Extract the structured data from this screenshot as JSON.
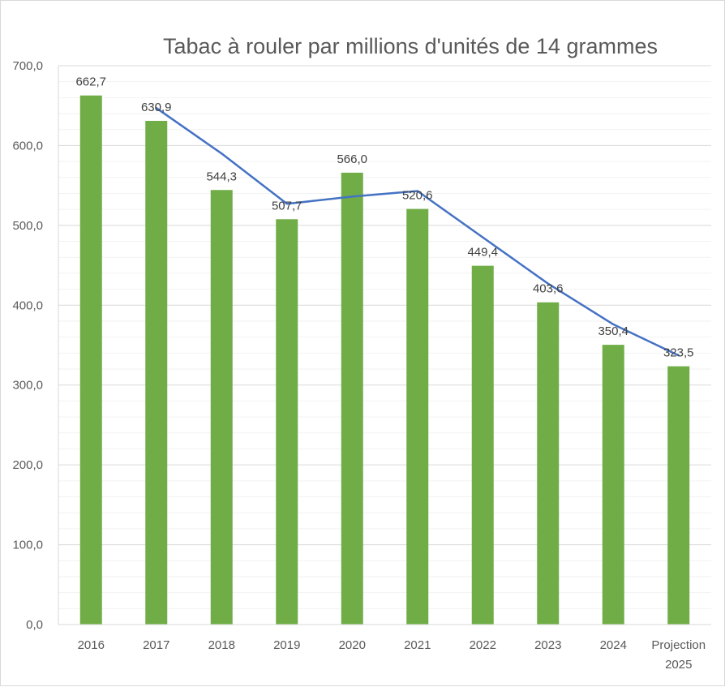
{
  "chart_data": {
    "type": "bar",
    "title": "Tabac à rouler par millions d'unités de 14 grammes",
    "categories": [
      [
        "2016"
      ],
      [
        "2017"
      ],
      [
        "2018"
      ],
      [
        "2019"
      ],
      [
        "2020"
      ],
      [
        "2021"
      ],
      [
        "2022"
      ],
      [
        "2023"
      ],
      [
        "2024"
      ],
      [
        "Projection",
        "2025"
      ]
    ],
    "series": [
      {
        "type": "bar",
        "values": [
          662.7,
          630.9,
          544.3,
          507.7,
          566.0,
          520.6,
          449.4,
          403.6,
          350.4,
          323.5
        ],
        "data_labels": [
          "662,7",
          "630,9",
          "544,3",
          "507,7",
          "566,0",
          "520,6",
          "449,4",
          "403,6",
          "350,4",
          "323,5"
        ],
        "color": "#70ad47"
      },
      {
        "type": "line",
        "values": [
          null,
          647,
          590,
          527,
          536,
          543,
          485,
          427,
          376,
          337
        ],
        "color": "#4472c4"
      }
    ],
    "yticks": [
      "0,0",
      "100,0",
      "200,0",
      "300,0",
      "400,0",
      "500,0",
      "600,0",
      "700,0"
    ],
    "ylim": [
      0,
      700
    ],
    "major_step": 100,
    "minor_step": 20,
    "grid": true,
    "legend": "none",
    "xlabel": "",
    "ylabel": ""
  }
}
